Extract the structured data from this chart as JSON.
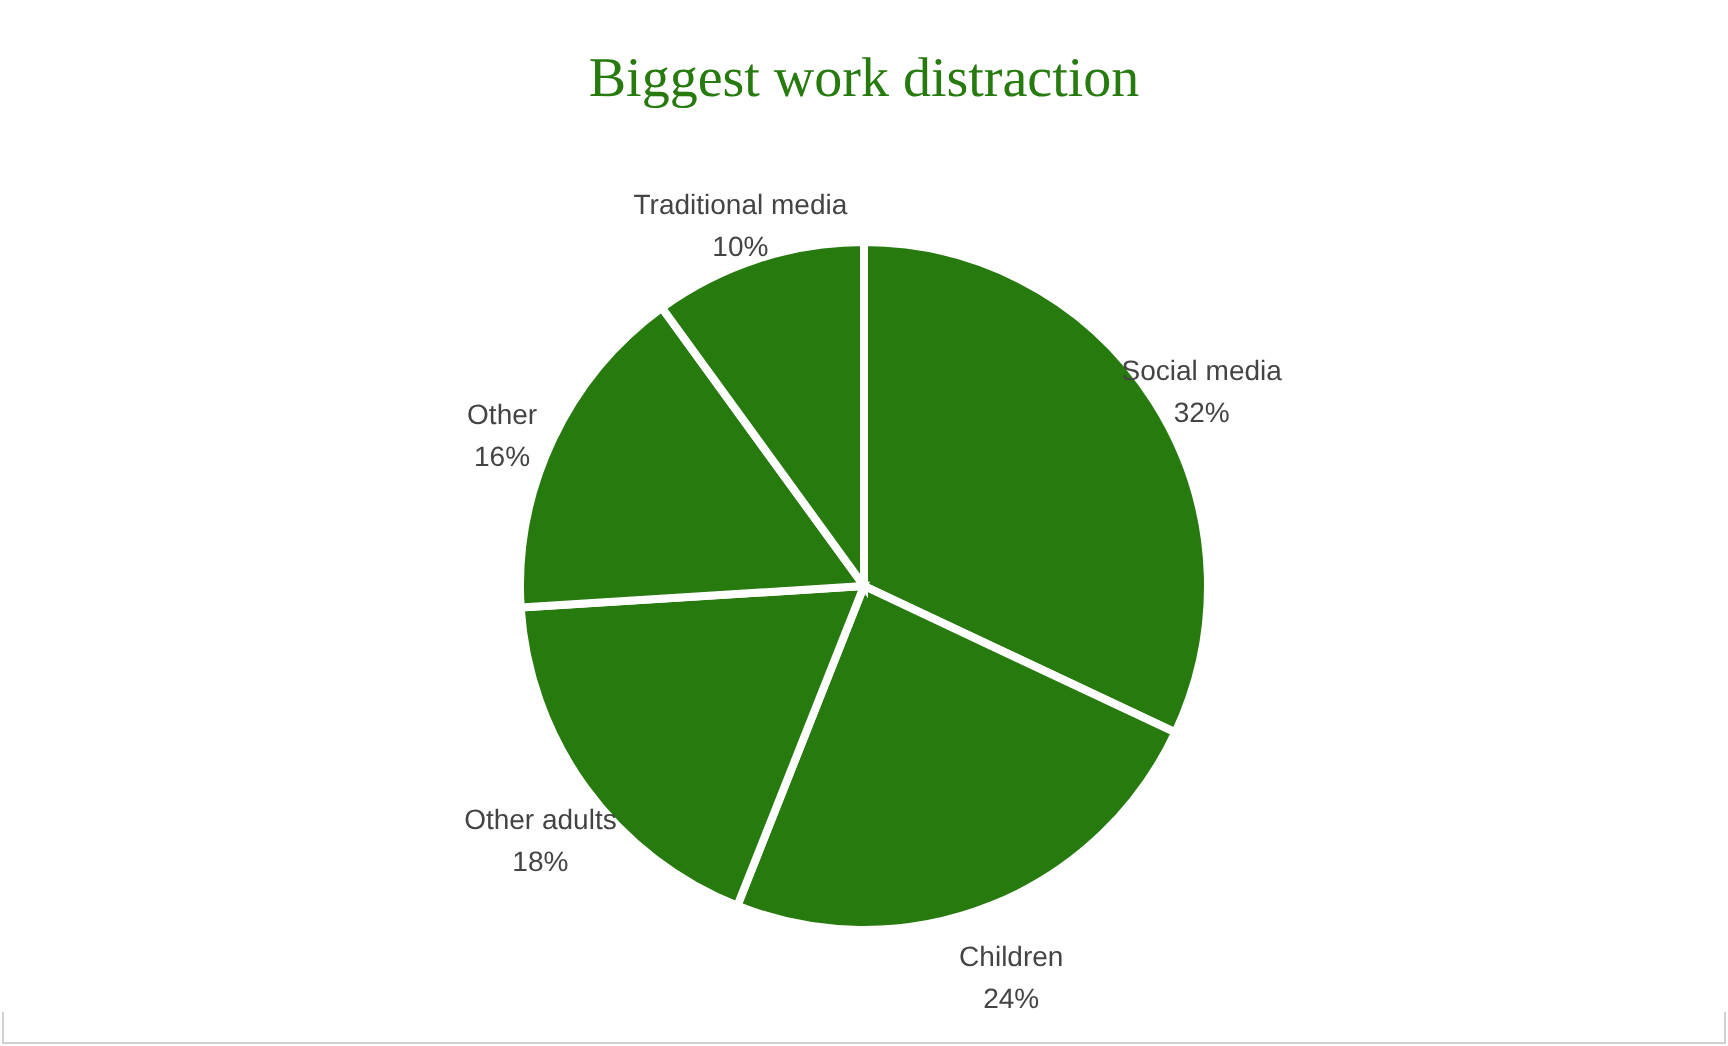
{
  "chart_data": {
    "type": "pie",
    "title": "Biggest work distraction",
    "categories": [
      "Social media",
      "Children",
      "Other adults",
      "Other",
      "Traditional media"
    ],
    "values": [
      32,
      24,
      18,
      16,
      10
    ],
    "value_labels": [
      "32%",
      "24%",
      "18%",
      "16%",
      "10%"
    ],
    "colors": [
      "#267a0e",
      "#267a0e",
      "#267a0e",
      "#267a0e",
      "#267a0e"
    ],
    "legend": false
  }
}
